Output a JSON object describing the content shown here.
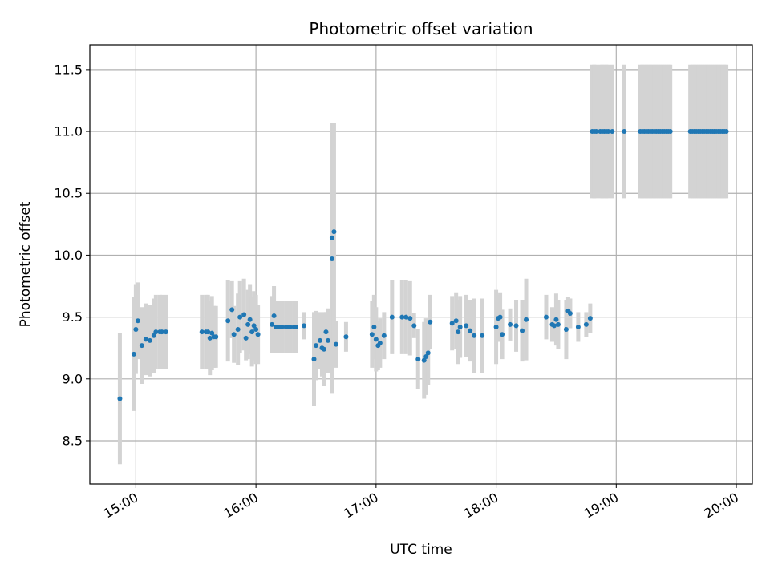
{
  "chart_data": {
    "type": "scatter",
    "title": "Photometric offset variation",
    "xlabel": "UTC time",
    "ylabel": "Photometric offset",
    "x_unit": "HH:MM UTC",
    "xlim": [
      "14:37",
      "20:08"
    ],
    "ylim": [
      8.15,
      11.7
    ],
    "x_ticks": [
      "15:00",
      "16:00",
      "17:00",
      "18:00",
      "19:00",
      "20:00"
    ],
    "y_ticks": [
      8.5,
      9.0,
      9.5,
      10.0,
      10.5,
      11.0,
      11.5
    ],
    "grid": true,
    "marker_color": "#1f77b4",
    "errorbar_color": "#d3d3d3",
    "series": [
      {
        "x": [
          "14:52",
          "14:59",
          "15:00",
          "15:01",
          "15:03",
          "15:05",
          "15:07",
          "15:09",
          "15:10",
          "15:12",
          "15:13",
          "15:15",
          "15:33",
          "15:35",
          "15:36",
          "15:37",
          "15:38",
          "15:39",
          "15:40",
          "15:46",
          "15:48",
          "15:49",
          "15:51",
          "15:52",
          "15:54",
          "15:55",
          "15:56",
          "15:57",
          "15:58",
          "15:59",
          "16:00",
          "16:01",
          "16:08",
          "16:09",
          "16:10",
          "16:12",
          "16:13",
          "16:15",
          "16:16",
          "16:17",
          "16:19",
          "16:20",
          "16:24",
          "16:29",
          "16:30",
          "16:32",
          "16:33",
          "16:34",
          "16:35",
          "16:36",
          "16:38",
          "16:38",
          "16:39",
          "16:40",
          "16:45",
          "16:58",
          "16:59",
          "17:00",
          "17:01",
          "17:02",
          "17:04",
          "17:08",
          "17:13",
          "17:15",
          "17:17",
          "17:19",
          "17:21",
          "17:24",
          "17:25",
          "17:26",
          "17:27",
          "17:38",
          "17:40",
          "17:41",
          "17:42",
          "17:45",
          "17:47",
          "17:49",
          "17:53",
          "18:00",
          "18:01",
          "18:02",
          "18:03",
          "18:07",
          "18:10",
          "18:13",
          "18:15",
          "18:25",
          "18:28",
          "18:29",
          "18:30",
          "18:31",
          "18:35",
          "18:36",
          "18:37",
          "18:41",
          "18:45",
          "18:47",
          "18:48",
          "18:49",
          "18:50",
          "18:52",
          "18:53",
          "18:54",
          "18:55",
          "18:56",
          "18:58",
          "19:04",
          "19:12",
          "19:13",
          "19:14",
          "19:15",
          "19:16",
          "19:17",
          "19:18",
          "19:19",
          "19:20",
          "19:21",
          "19:22",
          "19:23",
          "19:24",
          "19:25",
          "19:26",
          "19:27",
          "19:37",
          "19:38",
          "19:39",
          "19:40",
          "19:41",
          "19:42",
          "19:43",
          "19:44",
          "19:45",
          "19:46",
          "19:47",
          "19:48",
          "19:49",
          "19:50",
          "19:51",
          "19:52",
          "19:53",
          "19:54",
          "19:55"
        ],
        "y": [
          8.84,
          9.2,
          9.4,
          9.47,
          9.27,
          9.32,
          9.31,
          9.35,
          9.38,
          9.38,
          9.38,
          9.38,
          9.38,
          9.38,
          9.38,
          9.33,
          9.37,
          9.34,
          9.34,
          9.47,
          9.56,
          9.36,
          9.4,
          9.5,
          9.52,
          9.33,
          9.44,
          9.48,
          9.38,
          9.43,
          9.4,
          9.36,
          9.44,
          9.51,
          9.42,
          9.42,
          9.42,
          9.42,
          9.42,
          9.42,
          9.42,
          9.42,
          9.43,
          9.16,
          9.27,
          9.31,
          9.25,
          9.24,
          9.38,
          9.31,
          9.97,
          10.14,
          10.19,
          9.28,
          9.34,
          9.36,
          9.42,
          9.32,
          9.27,
          9.29,
          9.35,
          9.5,
          9.5,
          9.5,
          9.49,
          9.43,
          9.16,
          9.15,
          9.18,
          9.21,
          9.46,
          9.45,
          9.47,
          9.38,
          9.42,
          9.43,
          9.39,
          9.35,
          9.35,
          9.42,
          9.49,
          9.5,
          9.36,
          9.44,
          9.43,
          9.39,
          9.48,
          9.5,
          9.44,
          9.43,
          9.48,
          9.44,
          9.4,
          9.55,
          9.53,
          9.42,
          9.44,
          9.49,
          11.0,
          11.0,
          11.0,
          11.0,
          11.0,
          11.0,
          11.0,
          11.0,
          11.0,
          11.0,
          11.0,
          11.0,
          11.0,
          11.0,
          11.0,
          11.0,
          11.0,
          11.0,
          11.0,
          11.0,
          11.0,
          11.0,
          11.0,
          11.0,
          11.0,
          11.0,
          11.0,
          11.0,
          11.0,
          11.0,
          11.0,
          11.0,
          11.0,
          11.0,
          11.0,
          11.0,
          11.0,
          11.0,
          11.0,
          11.0,
          11.0,
          11.0,
          11.0,
          11.0,
          11.0
        ],
        "yerr": [
          0.53,
          0.46,
          0.36,
          0.31,
          0.31,
          0.29,
          0.29,
          0.3,
          0.3,
          0.3,
          0.3,
          0.3,
          0.3,
          0.3,
          0.3,
          0.3,
          0.3,
          0.25,
          0.25,
          0.33,
          0.23,
          0.23,
          0.29,
          0.29,
          0.29,
          0.18,
          0.28,
          0.28,
          0.28,
          0.28,
          0.28,
          0.24,
          0.23,
          0.24,
          0.21,
          0.21,
          0.21,
          0.21,
          0.21,
          0.21,
          0.21,
          0.21,
          0.11,
          0.38,
          0.28,
          0.23,
          0.23,
          0.3,
          0.16,
          0.26,
          1.09,
          0.93,
          0.88,
          0.19,
          0.12,
          0.27,
          0.26,
          0.26,
          0.2,
          0.2,
          0.19,
          0.3,
          0.3,
          0.3,
          0.3,
          0.1,
          0.24,
          0.31,
          0.31,
          0.26,
          0.22,
          0.22,
          0.23,
          0.26,
          0.25,
          0.25,
          0.25,
          0.3,
          0.3,
          0.3,
          0.19,
          0.2,
          0.2,
          0.13,
          0.21,
          0.25,
          0.33,
          0.18,
          0.14,
          0.13,
          0.21,
          0.2,
          0.24,
          0.11,
          0.12,
          0.12,
          0.1,
          0.12,
          0.54,
          0.54,
          0.54,
          0.54,
          0.54,
          0.54,
          0.54,
          0.54,
          0.54,
          0.54,
          0.54,
          0.54,
          0.54,
          0.54,
          0.54,
          0.54,
          0.54,
          0.54,
          0.54,
          0.54,
          0.54,
          0.54,
          0.54,
          0.54,
          0.54,
          0.54,
          0.54,
          0.54,
          0.54,
          0.54,
          0.54,
          0.54,
          0.54,
          0.54,
          0.54,
          0.54,
          0.54,
          0.54,
          0.54,
          0.54,
          0.54,
          0.54,
          0.54,
          0.54,
          0.54
        ]
      }
    ]
  }
}
